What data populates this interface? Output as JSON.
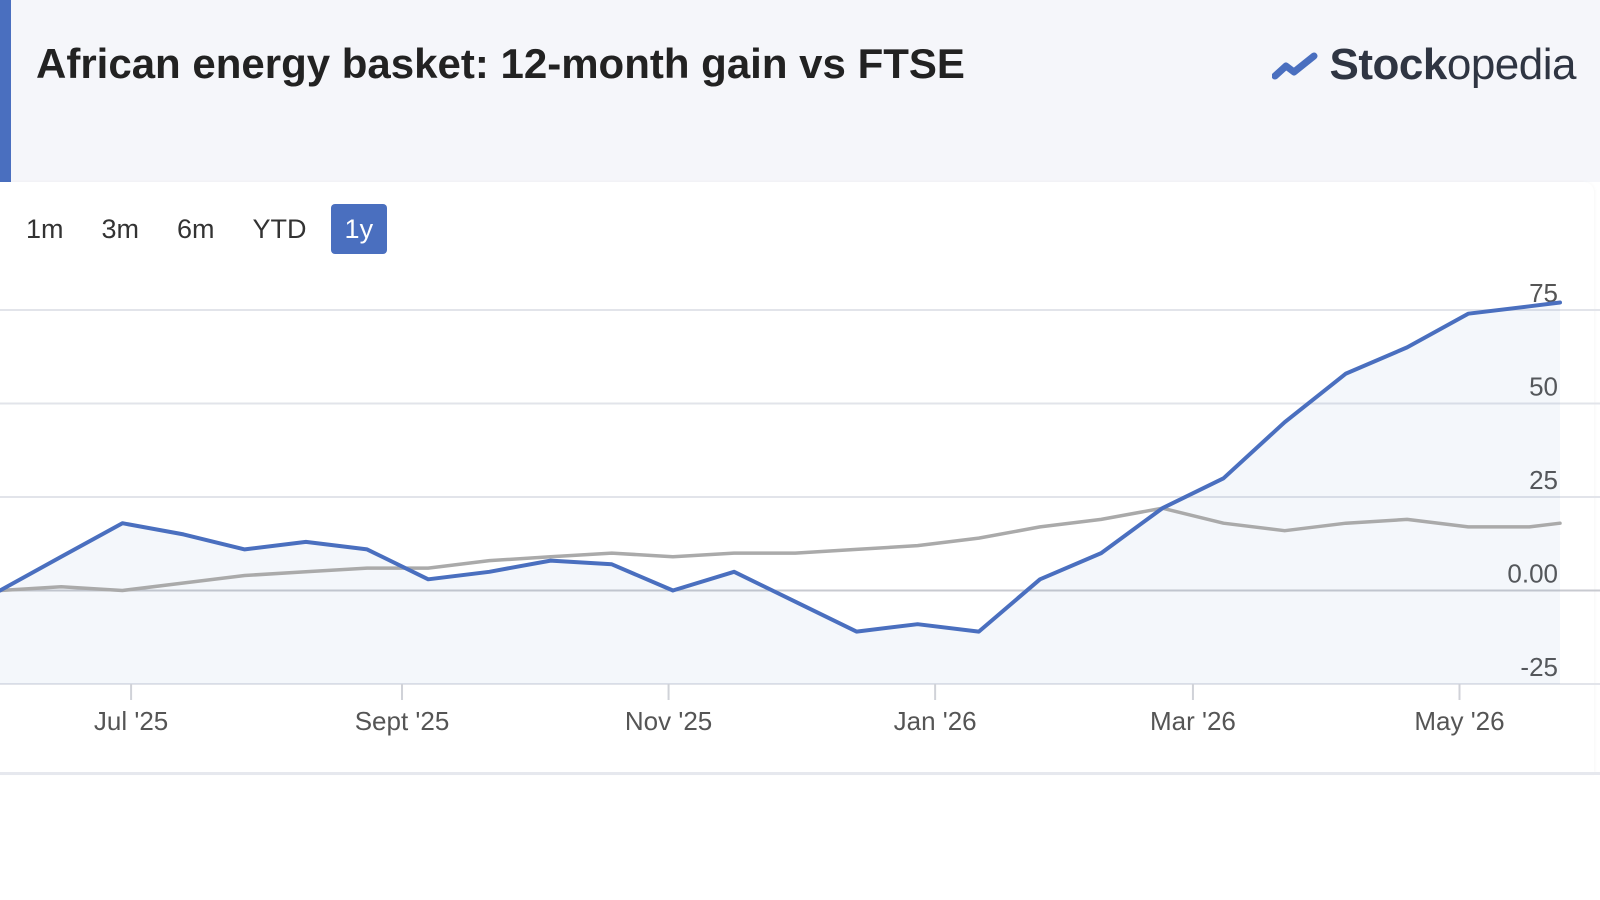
{
  "header": {
    "title": "African energy basket: 12-month gain vs FTSE",
    "brand_bold": "Stock",
    "brand_rest": "opedia",
    "brand_icon": "trend-up-icon",
    "accent_color": "#4a6fbf"
  },
  "range_selector": {
    "buttons": [
      "1m",
      "3m",
      "6m",
      "YTD",
      "1y"
    ],
    "selected": "1y"
  },
  "chart_data": {
    "type": "line",
    "title": "",
    "xlabel": "",
    "ylabel": "",
    "ylim": [
      -25,
      75
    ],
    "yticks": [
      -25,
      0,
      25,
      50,
      75
    ],
    "ytick_labels": [
      "-25",
      "0.00",
      "25",
      "50",
      "75"
    ],
    "xaxis_labels": [
      "Jul '25",
      "Sept '25",
      "Nov '25",
      "Jan '26",
      "Mar '26",
      "May '26"
    ],
    "x": [
      "2025-06-01",
      "2025-06-15",
      "2025-06-29",
      "2025-07-13",
      "2025-07-27",
      "2025-08-10",
      "2025-08-24",
      "2025-09-07",
      "2025-09-21",
      "2025-10-05",
      "2025-10-19",
      "2025-11-02",
      "2025-11-16",
      "2025-11-30",
      "2025-12-14",
      "2025-12-28",
      "2026-01-11",
      "2026-01-25",
      "2026-02-08",
      "2026-02-22",
      "2026-03-08",
      "2026-03-22",
      "2026-04-05",
      "2026-04-19",
      "2026-05-03",
      "2026-05-17",
      "2026-05-24"
    ],
    "series": [
      {
        "name": "",
        "color": "#4a6fbf",
        "values": [
          0,
          9,
          18,
          15,
          11,
          13,
          11,
          3,
          5,
          8,
          7,
          0,
          5,
          -3,
          -11,
          -9,
          -11,
          3,
          10,
          22,
          30,
          45,
          58,
          65,
          74,
          76,
          77
        ]
      },
      {
        "name": "",
        "color": "#aaaaaa",
        "values": [
          0,
          1,
          0,
          2,
          4,
          5,
          6,
          6,
          8,
          9,
          10,
          9,
          10,
          10,
          11,
          12,
          14,
          17,
          19,
          22,
          18,
          16,
          18,
          19,
          17,
          17,
          18
        ]
      }
    ],
    "grid": true,
    "legend": "none",
    "fill_under_primary": true
  }
}
